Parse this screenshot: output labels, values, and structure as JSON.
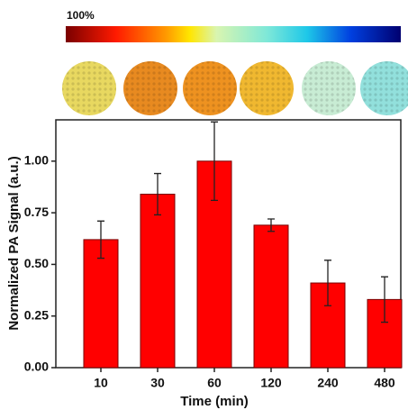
{
  "colorbar_label": "100%",
  "chart_data": {
    "type": "bar",
    "x_label": "Time (min)",
    "y_label": "Normalized PA Signal (a.u.)",
    "categories": [
      "10",
      "30",
      "60",
      "120",
      "240",
      "480"
    ],
    "values": [
      0.62,
      0.84,
      1.0,
      0.69,
      0.41,
      0.33
    ],
    "errors": [
      0.09,
      0.1,
      0.19,
      0.03,
      0.11,
      0.11
    ],
    "color": "#ff0000",
    "ylim": [
      0,
      1.2
    ],
    "yticks": [
      {
        "value": 0,
        "label": "0.00"
      },
      {
        "value": 0.25,
        "label": "0.25"
      },
      {
        "value": 0.5,
        "label": "0.50"
      },
      {
        "value": 0.75,
        "label": "0.75"
      },
      {
        "value": 1,
        "label": "1.00"
      }
    ]
  }
}
